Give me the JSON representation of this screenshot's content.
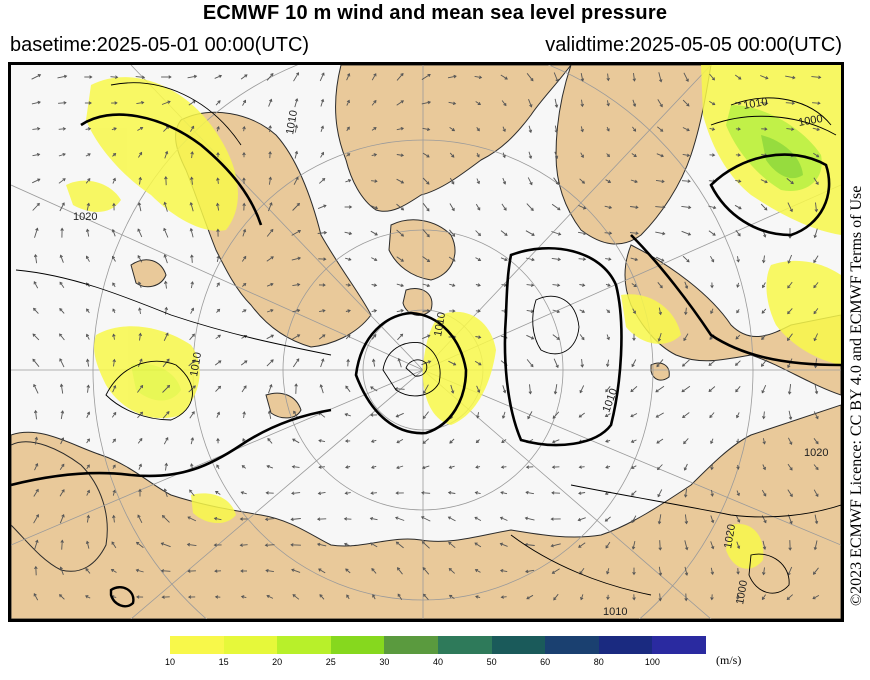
{
  "header": {
    "title": "ECMWF 10 m wind and mean sea level pressure",
    "basetime": "basetime:2025-05-01 00:00(UTC)",
    "validtime": "validtime:2025-05-05 00:00(UTC)"
  },
  "license": "©2023 ECMWF Licence: CC BY 4.0 and ECMWF Terms of Use",
  "map": {
    "isobar_labels": [
      "1020",
      "1010",
      "1010",
      "1010",
      "1020",
      "1000",
      "1010",
      "1010",
      "1000",
      "1020",
      "1010"
    ],
    "colors": {
      "land": "#e9c99a",
      "sea": "#f7f7f7",
      "coast": "#2b2b2b",
      "isobar": "#000000",
      "grid": "#9a9a9a",
      "wind_arrow": "#555555"
    }
  },
  "legend": {
    "units": "(m/s)",
    "labels": [
      "10",
      "15",
      "20",
      "25",
      "30",
      "40",
      "50",
      "60",
      "80",
      "100"
    ],
    "colors": [
      "#f8f84a",
      "#e6f83a",
      "#b8f02a",
      "#86d81e",
      "#5a9a3e",
      "#2e7a5a",
      "#1a5a5a",
      "#1a4070",
      "#1a2a80",
      "#2a2aa0"
    ]
  }
}
